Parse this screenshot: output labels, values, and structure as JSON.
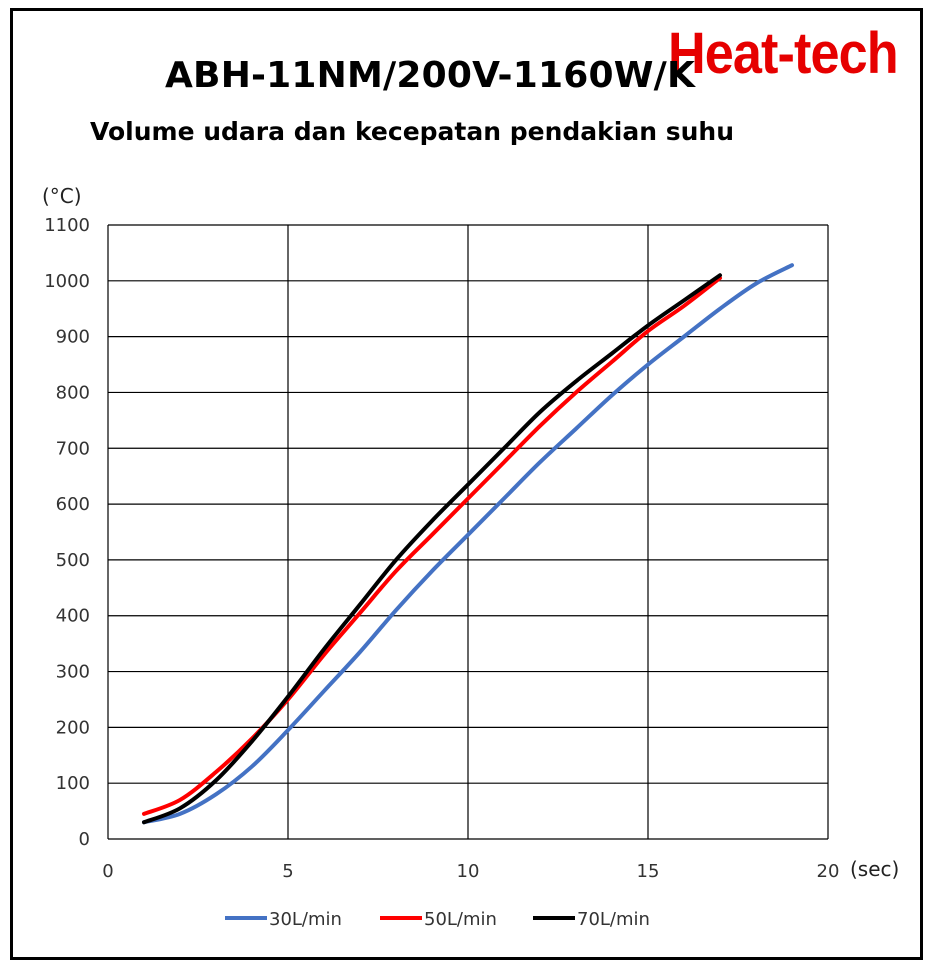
{
  "title": "ABH-11NM/200V-1160W/K",
  "logo_text": "Heat-tech",
  "subtitle": "Volume udara dan kecepatan pendakian suhu",
  "colors": {
    "logo": "#e60000",
    "series_30": "#4472c4",
    "series_50": "#ff0000",
    "series_70": "#000000"
  },
  "chart_data": {
    "type": "line",
    "title": "ABH-11NM/200V-1160W/K",
    "subtitle": "Volume udara dan kecepatan pendakian suhu",
    "xlabel": "(sec)",
    "ylabel": "(°C)",
    "xlim": [
      0,
      20
    ],
    "ylim": [
      0,
      1100
    ],
    "xticks": [
      0,
      5,
      10,
      15,
      20
    ],
    "yticks": [
      0,
      100,
      200,
      300,
      400,
      500,
      600,
      700,
      800,
      900,
      1000,
      1100
    ],
    "grid": true,
    "legend_position": "bottom",
    "series": [
      {
        "name": "30L/min",
        "color": "#4472c4",
        "x": [
          1,
          2,
          3,
          4,
          5,
          6,
          7,
          8,
          9,
          10,
          11,
          12,
          13,
          14,
          15,
          16,
          17,
          18,
          19
        ],
        "y": [
          30,
          45,
          80,
          130,
          195,
          265,
          335,
          410,
          480,
          545,
          610,
          675,
          735,
          795,
          850,
          900,
          950,
          995,
          1028
        ]
      },
      {
        "name": "50L/min",
        "color": "#ff0000",
        "x": [
          1,
          2,
          3,
          4,
          5,
          6,
          7,
          8,
          9,
          10,
          11,
          12,
          13,
          14,
          15,
          16,
          17
        ],
        "y": [
          45,
          70,
          120,
          180,
          250,
          330,
          405,
          480,
          545,
          610,
          675,
          740,
          800,
          855,
          910,
          955,
          1005
        ]
      },
      {
        "name": "70L/min",
        "color": "#000000",
        "x": [
          1,
          2,
          3,
          4,
          5,
          6,
          7,
          8,
          9,
          10,
          11,
          12,
          13,
          14,
          15,
          16,
          17
        ],
        "y": [
          30,
          55,
          105,
          175,
          255,
          340,
          420,
          500,
          570,
          635,
          700,
          765,
          820,
          870,
          920,
          965,
          1010
        ]
      }
    ]
  }
}
